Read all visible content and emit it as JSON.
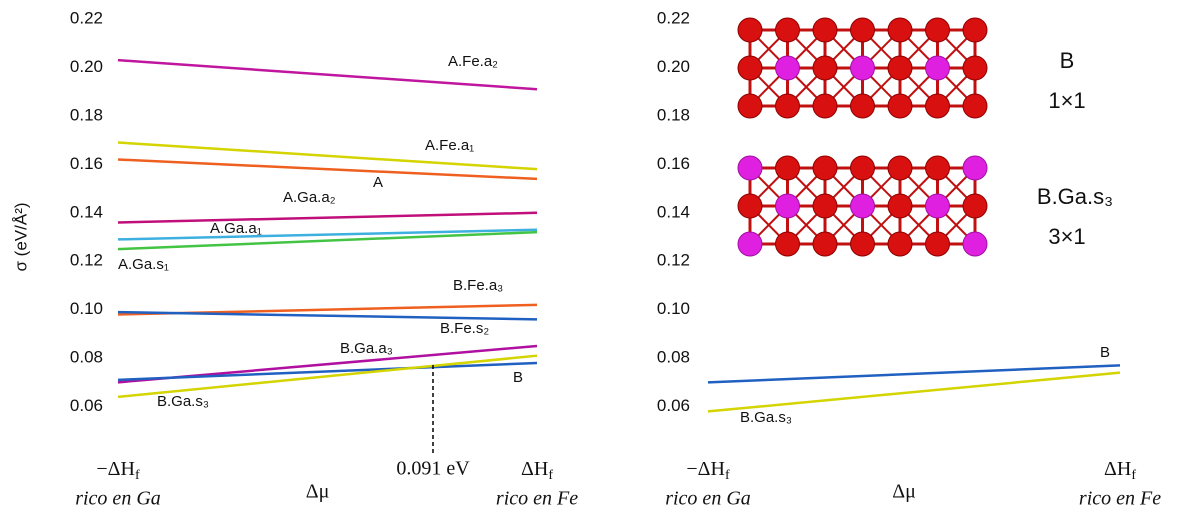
{
  "chart_data": [
    {
      "type": "line",
      "ylabel": "σ (eV/Å²)",
      "xlabel": "Δμ",
      "categories": [
        "−ΔH",
        "ΔH"
      ],
      "category_subscript": "f",
      "category_notes": [
        "rico en Ga",
        "rico en Fe"
      ],
      "ylim": [
        0.04,
        0.22
      ],
      "yticks": [
        0.06,
        0.08,
        {
          "value": 0.1,
          "label": "0.10"
        },
        0.12,
        0.14,
        0.16,
        0.18,
        {
          "value": 0.2,
          "label": "0.20"
        },
        0.22
      ],
      "annotations": [
        "0.091 eV"
      ],
      "series": [
        {
          "name": "A.Fe.a₂",
          "color": "#c0169f",
          "values": [
            0.203,
            0.191
          ]
        },
        {
          "name": "A.Fe.a₁",
          "color": "#d4d400",
          "values": [
            0.169,
            0.158
          ]
        },
        {
          "name": "A",
          "color": "#ef6020",
          "values": [
            0.162,
            0.154
          ]
        },
        {
          "name": "A.Ga.a₂",
          "color": "#c00f7a",
          "values": [
            0.136,
            0.14
          ]
        },
        {
          "name": "A.Ga.a₁",
          "color": "#3db0e0",
          "values": [
            0.129,
            0.133
          ]
        },
        {
          "name": "A.Ga.s₁",
          "color": "#44c444",
          "values": [
            0.125,
            0.132
          ]
        },
        {
          "name": "B.Fe.a₃",
          "color": "#ef6020",
          "values": [
            0.098,
            0.102
          ]
        },
        {
          "name": "B.Fe.s₂",
          "color": "#2060c0",
          "values": [
            0.099,
            0.096
          ]
        },
        {
          "name": "B.Ga.a₃",
          "color": "#b010a0",
          "values": [
            0.07,
            0.085
          ]
        },
        {
          "name": "B",
          "color": "#2060c0",
          "values": [
            0.071,
            0.078
          ]
        },
        {
          "name": "B.Ga.s₃",
          "color": "#d4d400",
          "values": [
            0.064,
            0.081
          ]
        }
      ]
    },
    {
      "type": "line",
      "xlabel": "Δμ",
      "categories": [
        "−ΔH",
        "ΔH"
      ],
      "category_subscript": "f",
      "category_notes": [
        "rico en Ga",
        "rico en Fe"
      ],
      "ylim": [
        0.04,
        0.22
      ],
      "yticks": [
        0.06,
        0.08,
        {
          "value": 0.1,
          "label": "0.10"
        },
        0.12,
        0.14,
        0.16,
        0.18,
        {
          "value": 0.2,
          "label": "0.20"
        },
        0.22
      ],
      "annotations": [
        "B",
        "1×1",
        "B.Ga.s₃",
        "3×1"
      ],
      "series": [
        {
          "name": "B",
          "color": "#2060c0",
          "values": [
            0.07,
            0.077
          ]
        },
        {
          "name": "B.Ga.s₃",
          "color": "#d4d400",
          "values": [
            0.058,
            0.074
          ]
        }
      ]
    }
  ]
}
